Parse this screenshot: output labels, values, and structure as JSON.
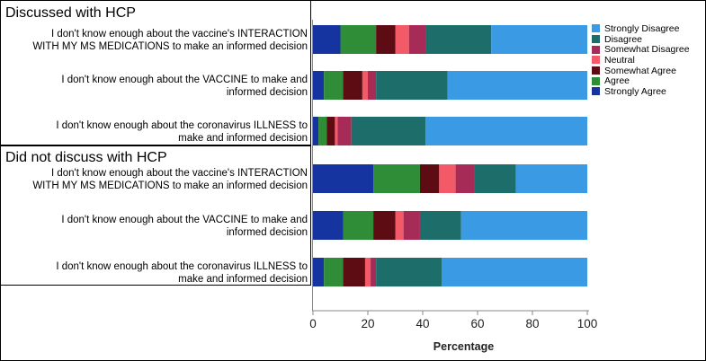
{
  "groups": [
    {
      "title": "Discussed with HCP"
    },
    {
      "title": "Did not discuss with HCP"
    }
  ],
  "colors": {
    "Strongly Disagree": "#3a9ae4",
    "Disagree": "#1d6d6b",
    "Somewhat Disagree": "#a72b57",
    "Neutral": "#f25a68",
    "Somewhat Agree": "#5c0c12",
    "Agree": "#2f8c37",
    "Strongly Agree": "#1534a0"
  },
  "chart_data": {
    "type": "bar",
    "orientation": "horizontal",
    "stacked": true,
    "xlabel": "Percentage",
    "xlim": [
      0,
      100
    ],
    "xticks": [
      "0",
      "20",
      "40",
      "60",
      "80",
      "100"
    ],
    "legend_order": [
      "Strongly Disagree",
      "Disagree",
      "Somewhat Disagree",
      "Neutral",
      "Somewhat Agree",
      "Agree",
      "Strongly Agree"
    ],
    "stack_order": [
      "Strongly Agree",
      "Agree",
      "Somewhat Agree",
      "Neutral",
      "Somewhat Disagree",
      "Disagree",
      "Strongly Disagree"
    ],
    "categories": [
      "I don't know enough about the vaccine's INTERACTION\nWITH MY MS MEDICATIONS to make an informed decision",
      "I don't know enough about the VACCINE to make and\ninformed decision",
      "I don't know enough about the coronavirus ILLNESS to\nmake and informed decision",
      "I don't know enough about the vaccine's INTERACTION\nWITH MY MS MEDICATIONS to make an informed decision",
      "I don't know enough about the VACCINE to make and\ninformed decision",
      "I don't know enough about the coronavirus ILLNESS to\nmake and informed decision"
    ],
    "category_group": [
      0,
      0,
      0,
      1,
      1,
      1
    ],
    "series": [
      {
        "name": "Strongly Agree",
        "values": [
          10,
          4,
          2,
          22,
          11,
          4
        ]
      },
      {
        "name": "Agree",
        "values": [
          13,
          7,
          3,
          17,
          11,
          7
        ]
      },
      {
        "name": "Somewhat Agree",
        "values": [
          7,
          7,
          3,
          7,
          8,
          8
        ]
      },
      {
        "name": "Neutral",
        "values": [
          5,
          2,
          1,
          6,
          3,
          2
        ]
      },
      {
        "name": "Somewhat Disagree",
        "values": [
          6,
          3,
          5,
          7,
          6,
          2
        ]
      },
      {
        "name": "Disagree",
        "values": [
          24,
          26,
          27,
          15,
          15,
          24
        ]
      },
      {
        "name": "Strongly Disagree",
        "values": [
          35,
          51,
          59,
          26,
          46,
          53
        ]
      }
    ]
  }
}
